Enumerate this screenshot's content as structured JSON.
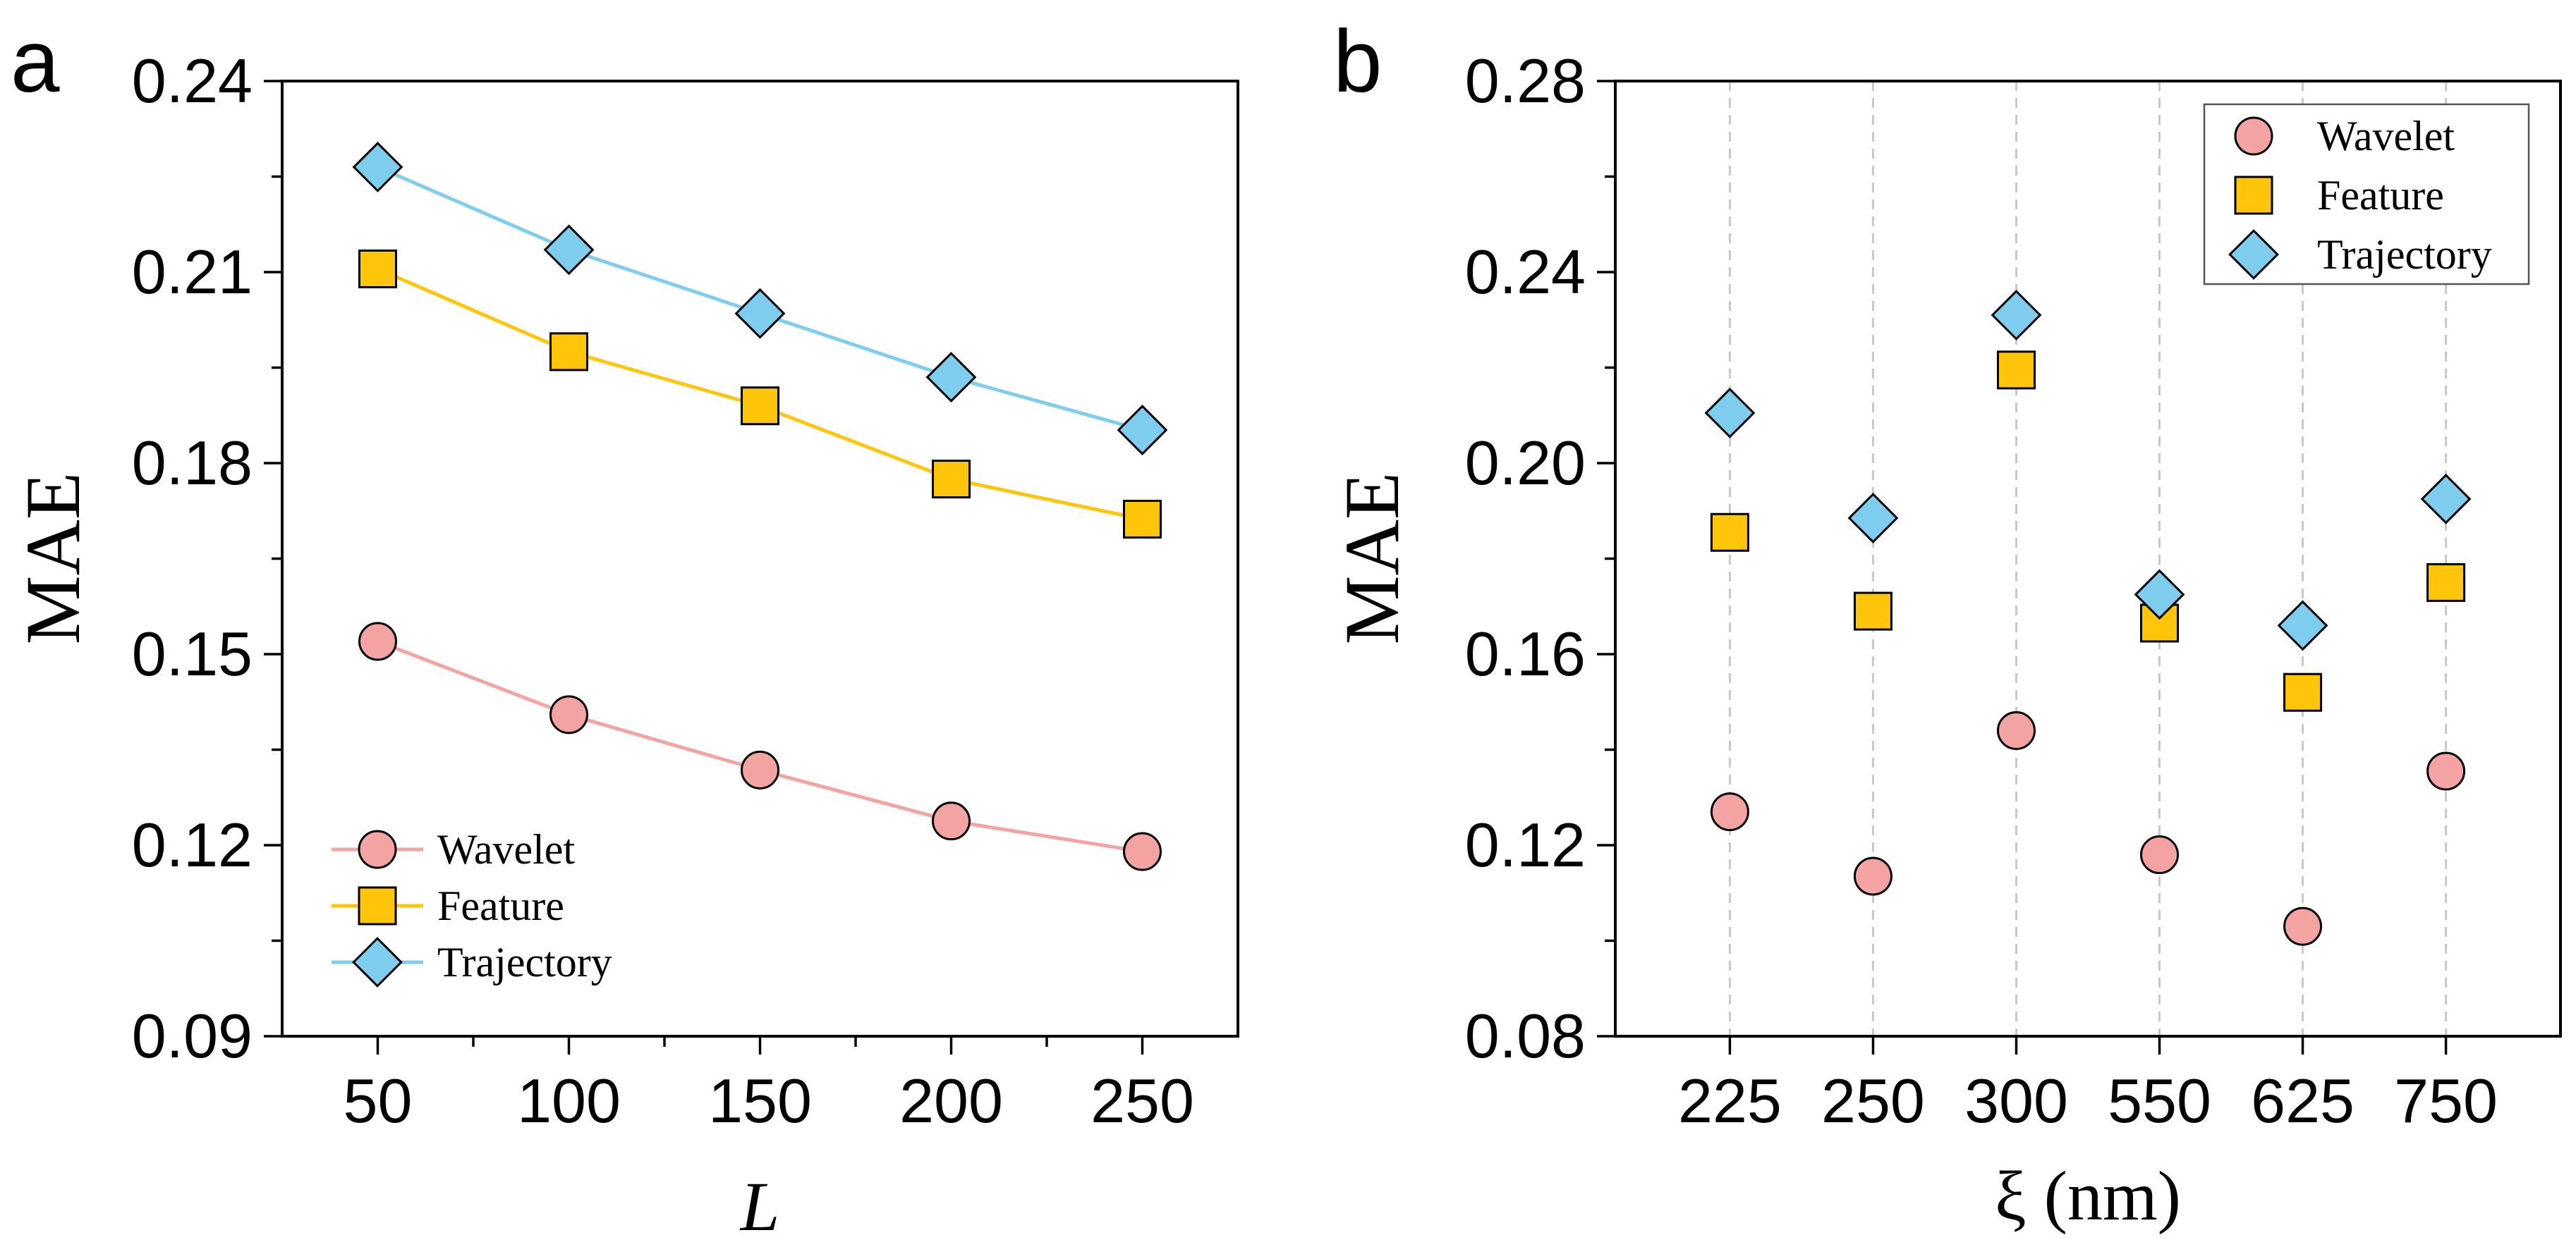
{
  "chart_data": [
    {
      "panel_label": "a",
      "type": "line",
      "xlabel": "L",
      "ylabel": "MAE",
      "x": [
        50,
        100,
        150,
        200,
        250
      ],
      "x_tick_labels": [
        "50",
        "100",
        "150",
        "200",
        "250"
      ],
      "xlim": [
        25,
        275
      ],
      "ylim": [
        0.09,
        0.24
      ],
      "y_ticks": [
        0.09,
        0.12,
        0.15,
        0.18,
        0.21,
        0.24
      ],
      "y_tick_labels": [
        "0.09",
        "0.12",
        "0.15",
        "0.18",
        "0.21",
        "0.24"
      ],
      "grid": false,
      "legend_position": "bottom-left",
      "series": [
        {
          "name": "Wavelet",
          "marker": "circle",
          "color": "#F4A3A3",
          "line_color": "#F4A3A3",
          "values": [
            0.152,
            0.1405,
            0.1318,
            0.1238,
            0.119
          ]
        },
        {
          "name": "Feature",
          "marker": "square",
          "color": "#FFC50A",
          "line_color": "#FFC50A",
          "values": [
            0.2105,
            0.1975,
            0.189,
            0.1775,
            0.1712
          ]
        },
        {
          "name": "Trajectory",
          "marker": "diamond",
          "color": "#7FCDEE",
          "line_color": "#7FCDEE",
          "values": [
            0.2265,
            0.2135,
            0.2035,
            0.1935,
            0.1852
          ]
        }
      ]
    },
    {
      "panel_label": "b",
      "type": "scatter",
      "xlabel": "ξ (nm)",
      "ylabel": "MAE",
      "categories": [
        "225",
        "250",
        "300",
        "550",
        "625",
        "750"
      ],
      "ylim": [
        0.08,
        0.28
      ],
      "y_ticks": [
        0.08,
        0.12,
        0.16,
        0.2,
        0.24,
        0.28
      ],
      "y_tick_labels": [
        "0.08",
        "0.12",
        "0.16",
        "0.20",
        "0.24",
        "0.28"
      ],
      "grid": "vertical dashed",
      "legend_position": "top-right",
      "series": [
        {
          "name": "Wavelet",
          "marker": "circle",
          "color": "#F4A3A3",
          "values": [
            0.127,
            0.1135,
            0.144,
            0.118,
            0.103,
            0.1355
          ]
        },
        {
          "name": "Feature",
          "marker": "square",
          "color": "#FFC50A",
          "values": [
            0.1855,
            0.169,
            0.2195,
            0.1665,
            0.152,
            0.175
          ]
        },
        {
          "name": "Trajectory",
          "marker": "diamond",
          "color": "#7FCDEE",
          "values": [
            0.2105,
            0.1885,
            0.231,
            0.1725,
            0.166,
            0.1925
          ]
        }
      ]
    }
  ]
}
